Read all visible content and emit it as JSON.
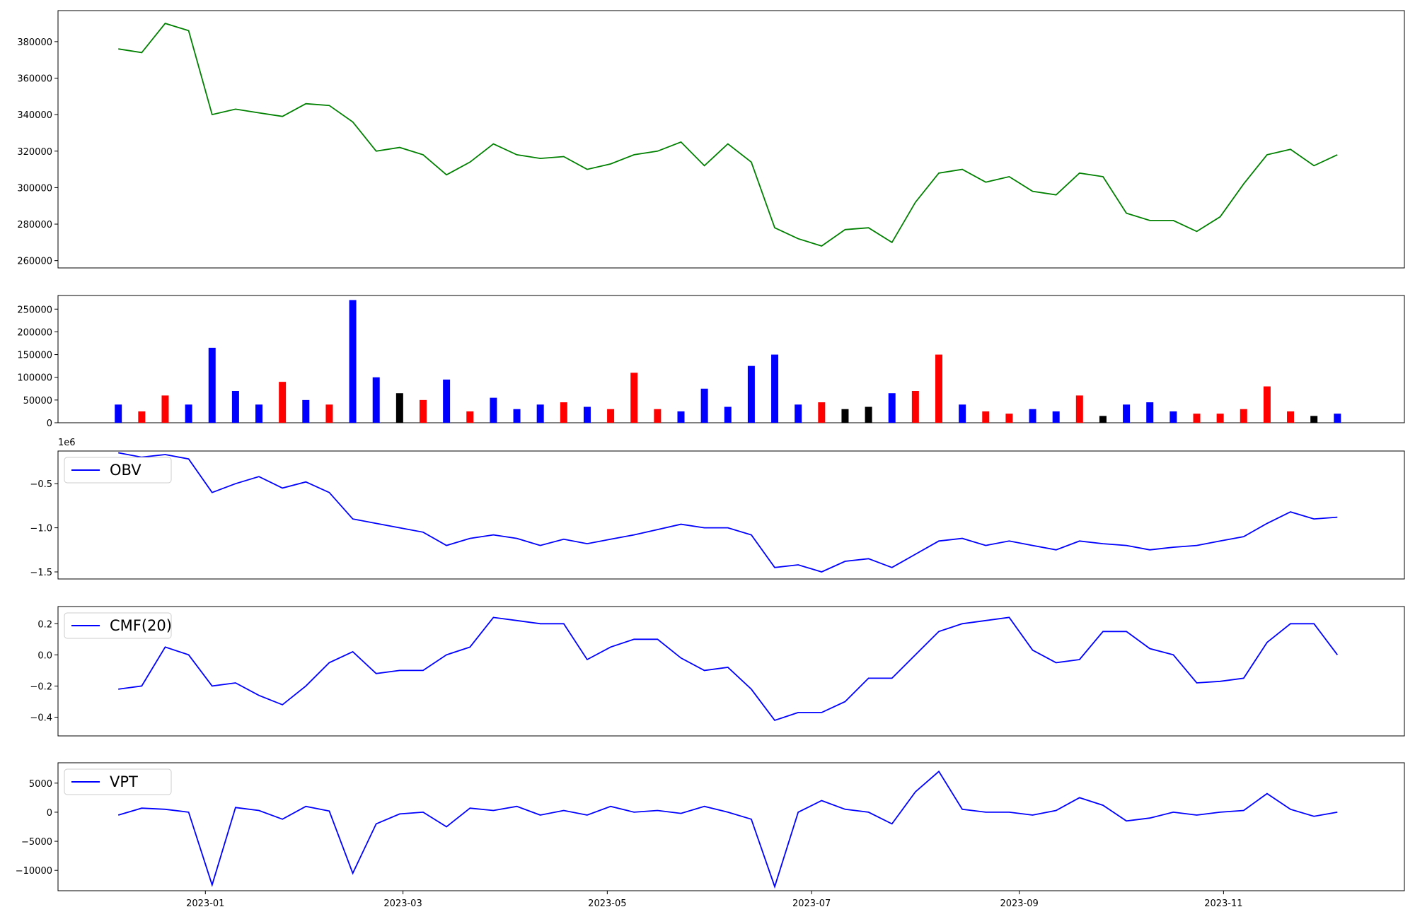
{
  "chart_data": [
    {
      "type": "line",
      "color": "#008000",
      "x": [
        "2022-12-06",
        "2022-12-13",
        "2022-12-20",
        "2022-12-27",
        "2023-01-03",
        "2023-01-10",
        "2023-01-17",
        "2023-01-24",
        "2023-01-31",
        "2023-02-07",
        "2023-02-14",
        "2023-02-21",
        "2023-02-28",
        "2023-03-07",
        "2023-03-14",
        "2023-03-21",
        "2023-03-28",
        "2023-04-04",
        "2023-04-11",
        "2023-04-18",
        "2023-04-25",
        "2023-05-02",
        "2023-05-09",
        "2023-05-16",
        "2023-05-23",
        "2023-05-30",
        "2023-06-06",
        "2023-06-13",
        "2023-06-20",
        "2023-06-27",
        "2023-07-04",
        "2023-07-11",
        "2023-07-18",
        "2023-07-25",
        "2023-08-01",
        "2023-08-08",
        "2023-08-15",
        "2023-08-22",
        "2023-08-29",
        "2023-09-05",
        "2023-09-12",
        "2023-09-19",
        "2023-09-26",
        "2023-10-03",
        "2023-10-10",
        "2023-10-17",
        "2023-10-24",
        "2023-10-31",
        "2023-11-07",
        "2023-11-14",
        "2023-11-21",
        "2023-11-28",
        "2023-12-05"
      ],
      "values": [
        376000,
        374000,
        390000,
        386000,
        340000,
        343000,
        341000,
        339000,
        346000,
        345000,
        336000,
        320000,
        322000,
        318000,
        307000,
        314000,
        324000,
        318000,
        316000,
        317000,
        310000,
        313000,
        318000,
        320000,
        325000,
        312000,
        324000,
        314000,
        278000,
        272000,
        268000,
        277000,
        278000,
        270000,
        292000,
        308000,
        310000,
        303000,
        306000,
        298000,
        296000,
        308000,
        306000,
        286000,
        282000,
        282000,
        276000,
        284000,
        302000,
        318000,
        321000,
        312000,
        318000
      ],
      "xlim": [
        "2022-11-18",
        "2023-12-25"
      ],
      "ylim": [
        256000,
        397000
      ],
      "yticks": [
        260000,
        280000,
        300000,
        320000,
        340000,
        360000,
        380000
      ]
    },
    {
      "type": "bar",
      "x": [
        "2022-12-06",
        "2022-12-13",
        "2022-12-20",
        "2022-12-27",
        "2023-01-03",
        "2023-01-10",
        "2023-01-17",
        "2023-01-24",
        "2023-01-31",
        "2023-02-07",
        "2023-02-14",
        "2023-02-21",
        "2023-02-28",
        "2023-03-07",
        "2023-03-14",
        "2023-03-21",
        "2023-03-28",
        "2023-04-04",
        "2023-04-11",
        "2023-04-18",
        "2023-04-25",
        "2023-05-02",
        "2023-05-09",
        "2023-05-16",
        "2023-05-23",
        "2023-05-30",
        "2023-06-06",
        "2023-06-13",
        "2023-06-20",
        "2023-06-27",
        "2023-07-04",
        "2023-07-11",
        "2023-07-18",
        "2023-07-25",
        "2023-08-01",
        "2023-08-08",
        "2023-08-15",
        "2023-08-22",
        "2023-08-29",
        "2023-09-05",
        "2023-09-12",
        "2023-09-19",
        "2023-09-26",
        "2023-10-03",
        "2023-10-10",
        "2023-10-17",
        "2023-10-24",
        "2023-10-31",
        "2023-11-07",
        "2023-11-14",
        "2023-11-21",
        "2023-11-28",
        "2023-12-05"
      ],
      "values": [
        40000,
        25000,
        60000,
        40000,
        165000,
        70000,
        40000,
        90000,
        50000,
        40000,
        270000,
        100000,
        65000,
        50000,
        95000,
        25000,
        55000,
        30000,
        40000,
        45000,
        35000,
        30000,
        110000,
        30000,
        25000,
        75000,
        35000,
        125000,
        150000,
        40000,
        45000,
        30000,
        35000,
        65000,
        70000,
        150000,
        40000,
        25000,
        20000,
        30000,
        25000,
        60000,
        15000,
        40000,
        45000,
        25000,
        20000,
        20000,
        30000,
        80000,
        25000,
        15000,
        20000
      ],
      "colors": [
        "#0000ff",
        "#ff0000",
        "#ff0000",
        "#0000ff",
        "#0000ff",
        "#0000ff",
        "#0000ff",
        "#ff0000",
        "#0000ff",
        "#ff0000",
        "#0000ff",
        "#0000ff",
        "#000000",
        "#ff0000",
        "#0000ff",
        "#ff0000",
        "#0000ff",
        "#0000ff",
        "#0000ff",
        "#ff0000",
        "#0000ff",
        "#ff0000",
        "#ff0000",
        "#ff0000",
        "#0000ff",
        "#0000ff",
        "#0000ff",
        "#0000ff",
        "#0000ff",
        "#0000ff",
        "#ff0000",
        "#000000",
        "#000000",
        "#0000ff",
        "#ff0000",
        "#ff0000",
        "#0000ff",
        "#ff0000",
        "#ff0000",
        "#0000ff",
        "#0000ff",
        "#ff0000",
        "#000000",
        "#0000ff",
        "#0000ff",
        "#0000ff",
        "#ff0000",
        "#ff0000",
        "#ff0000",
        "#ff0000",
        "#ff0000",
        "#000000",
        "#0000ff"
      ],
      "xlim": [
        "2022-11-18",
        "2023-12-25"
      ],
      "ylim": [
        0,
        280000
      ],
      "yticks": [
        0,
        50000,
        100000,
        150000,
        200000,
        250000
      ]
    },
    {
      "type": "line",
      "offset_text": "1e6",
      "legend": "upper left",
      "x": [
        "2022-12-06",
        "2022-12-13",
        "2022-12-20",
        "2022-12-27",
        "2023-01-03",
        "2023-01-10",
        "2023-01-17",
        "2023-01-24",
        "2023-01-31",
        "2023-02-07",
        "2023-02-14",
        "2023-02-21",
        "2023-02-28",
        "2023-03-07",
        "2023-03-14",
        "2023-03-21",
        "2023-03-28",
        "2023-04-04",
        "2023-04-11",
        "2023-04-18",
        "2023-04-25",
        "2023-05-02",
        "2023-05-09",
        "2023-05-16",
        "2023-05-23",
        "2023-05-30",
        "2023-06-06",
        "2023-06-13",
        "2023-06-20",
        "2023-06-27",
        "2023-07-04",
        "2023-07-11",
        "2023-07-18",
        "2023-07-25",
        "2023-08-01",
        "2023-08-08",
        "2023-08-15",
        "2023-08-22",
        "2023-08-29",
        "2023-09-05",
        "2023-09-12",
        "2023-09-19",
        "2023-09-26",
        "2023-10-03",
        "2023-10-10",
        "2023-10-17",
        "2023-10-24",
        "2023-10-31",
        "2023-11-07",
        "2023-11-14",
        "2023-11-21",
        "2023-11-28",
        "2023-12-05"
      ],
      "series": [
        {
          "name": "OBV",
          "color": "#0000ff",
          "values": [
            -0.15,
            -0.2,
            -0.17,
            -0.22,
            -0.6,
            -0.5,
            -0.42,
            -0.55,
            -0.48,
            -0.6,
            -0.9,
            -0.95,
            -1.0,
            -1.05,
            -1.2,
            -1.12,
            -1.08,
            -1.12,
            -1.2,
            -1.13,
            -1.18,
            -1.13,
            -1.08,
            -1.02,
            -0.96,
            -1.0,
            -1.0,
            -1.08,
            -1.45,
            -1.42,
            -1.5,
            -1.38,
            -1.35,
            -1.45,
            -1.3,
            -1.15,
            -1.12,
            -1.2,
            -1.15,
            -1.2,
            -1.25,
            -1.15,
            -1.18,
            -1.2,
            -1.25,
            -1.22,
            -1.2,
            -1.15,
            -1.1,
            -0.95,
            -0.82,
            -0.9,
            -0.88
          ]
        }
      ],
      "xlim": [
        "2022-11-18",
        "2023-12-25"
      ],
      "ylim": [
        -1.58,
        -0.13
      ],
      "yticks": [
        {
          "value": -1.5,
          "label": "−1.5"
        },
        {
          "value": -1.0,
          "label": "−1.0"
        },
        {
          "value": -0.5,
          "label": "−0.5"
        }
      ]
    },
    {
      "type": "line",
      "legend": "upper left",
      "x": [
        "2022-12-06",
        "2022-12-13",
        "2022-12-20",
        "2022-12-27",
        "2023-01-03",
        "2023-01-10",
        "2023-01-17",
        "2023-01-24",
        "2023-01-31",
        "2023-02-07",
        "2023-02-14",
        "2023-02-21",
        "2023-02-28",
        "2023-03-07",
        "2023-03-14",
        "2023-03-21",
        "2023-03-28",
        "2023-04-04",
        "2023-04-11",
        "2023-04-18",
        "2023-04-25",
        "2023-05-02",
        "2023-05-09",
        "2023-05-16",
        "2023-05-23",
        "2023-05-30",
        "2023-06-06",
        "2023-06-13",
        "2023-06-20",
        "2023-06-27",
        "2023-07-04",
        "2023-07-11",
        "2023-07-18",
        "2023-07-25",
        "2023-08-01",
        "2023-08-08",
        "2023-08-15",
        "2023-08-22",
        "2023-08-29",
        "2023-09-05",
        "2023-09-12",
        "2023-09-19",
        "2023-09-26",
        "2023-10-03",
        "2023-10-10",
        "2023-10-17",
        "2023-10-24",
        "2023-10-31",
        "2023-11-07",
        "2023-11-14",
        "2023-11-21",
        "2023-11-28",
        "2023-12-05"
      ],
      "series": [
        {
          "name": "CMF(20)",
          "color": "#0000ff",
          "values": [
            -0.22,
            -0.2,
            0.05,
            0.0,
            -0.2,
            -0.18,
            -0.26,
            -0.32,
            -0.2,
            -0.05,
            0.02,
            -0.12,
            -0.1,
            -0.1,
            0.0,
            0.05,
            0.24,
            0.22,
            0.2,
            0.2,
            -0.03,
            0.05,
            0.1,
            0.1,
            -0.02,
            -0.1,
            -0.08,
            -0.22,
            -0.42,
            -0.37,
            -0.37,
            -0.3,
            -0.15,
            -0.15,
            0.0,
            0.15,
            0.2,
            0.22,
            0.24,
            0.03,
            -0.05,
            -0.03,
            0.15,
            0.15,
            0.04,
            0.0,
            -0.18,
            -0.17,
            -0.15,
            0.08,
            0.2,
            0.2,
            0.0
          ]
        }
      ],
      "xlim": [
        "2022-11-18",
        "2023-12-25"
      ],
      "ylim": [
        -0.52,
        0.31
      ],
      "yticks": [
        {
          "value": -0.4,
          "label": "−0.4"
        },
        {
          "value": -0.2,
          "label": "−0.2"
        },
        {
          "value": 0,
          "label": "0.0"
        },
        0.2
      ]
    },
    {
      "type": "line",
      "legend": "upper left",
      "x": [
        "2022-12-06",
        "2022-12-13",
        "2022-12-20",
        "2022-12-27",
        "2023-01-03",
        "2023-01-10",
        "2023-01-17",
        "2023-01-24",
        "2023-01-31",
        "2023-02-07",
        "2023-02-14",
        "2023-02-21",
        "2023-02-28",
        "2023-03-07",
        "2023-03-14",
        "2023-03-21",
        "2023-03-28",
        "2023-04-04",
        "2023-04-11",
        "2023-04-18",
        "2023-04-25",
        "2023-05-02",
        "2023-05-09",
        "2023-05-16",
        "2023-05-23",
        "2023-05-30",
        "2023-06-06",
        "2023-06-13",
        "2023-06-20",
        "2023-06-27",
        "2023-07-04",
        "2023-07-11",
        "2023-07-18",
        "2023-07-25",
        "2023-08-01",
        "2023-08-08",
        "2023-08-15",
        "2023-08-22",
        "2023-08-29",
        "2023-09-05",
        "2023-09-12",
        "2023-09-19",
        "2023-09-26",
        "2023-10-03",
        "2023-10-10",
        "2023-10-17",
        "2023-10-24",
        "2023-10-31",
        "2023-11-07",
        "2023-11-14",
        "2023-11-21",
        "2023-11-28",
        "2023-12-05"
      ],
      "series": [
        {
          "name": "VPT",
          "color": "#0000ff",
          "values": [
            -500,
            700,
            500,
            0,
            -12500,
            800,
            300,
            -1200,
            1000,
            200,
            -10500,
            -2000,
            -300,
            0,
            -2500,
            700,
            300,
            1000,
            -500,
            300,
            -500,
            1000,
            0,
            300,
            -200,
            1000,
            0,
            -1200,
            -12800,
            0,
            2000,
            500,
            0,
            -2000,
            3500,
            7000,
            500,
            0,
            0,
            -500,
            300,
            2500,
            1200,
            -1500,
            -1000,
            0,
            -500,
            0,
            300,
            3200,
            500,
            -700,
            0
          ]
        }
      ],
      "xlim": [
        "2022-11-18",
        "2023-12-25"
      ],
      "ylim": [
        -13500,
        8500
      ],
      "yticks": [
        {
          "value": -10000,
          "label": "−10000"
        },
        {
          "value": -5000,
          "label": "−5000"
        },
        0,
        5000
      ],
      "xticks": [
        {
          "value": "2023-01-01",
          "label": "2023-01"
        },
        {
          "value": "2023-03-01",
          "label": "2023-03"
        },
        {
          "value": "2023-05-01",
          "label": "2023-05"
        },
        {
          "value": "2023-07-01",
          "label": "2023-07"
        },
        {
          "value": "2023-09-01",
          "label": "2023-09"
        },
        {
          "value": "2023-11-01",
          "label": "2023-11"
        }
      ]
    }
  ]
}
